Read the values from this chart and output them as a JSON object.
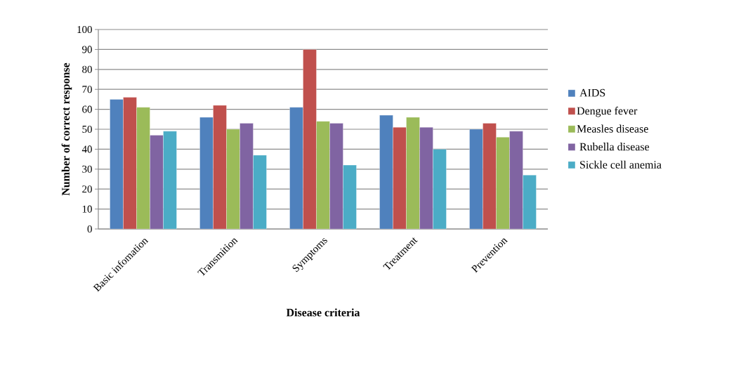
{
  "chart_data": {
    "type": "bar",
    "xlabel": "Disease criteria",
    "ylabel": "Number of correct response",
    "categories": [
      "Basic infomation",
      "Transmition",
      "Symptoms",
      "Treatment",
      "Prevention"
    ],
    "series": [
      {
        "name": " AIDS",
        "color": "#4f81bd",
        "values": [
          65,
          56,
          61,
          57,
          50
        ]
      },
      {
        "name": "Dengue fever",
        "color": "#c0504d",
        "values": [
          66,
          62,
          90,
          51,
          53
        ]
      },
      {
        "name": "Measles disease",
        "color": "#9bbb59",
        "values": [
          61,
          50,
          54,
          56,
          46
        ]
      },
      {
        "name": " Rubella disease",
        "color": "#8064a2",
        "values": [
          47,
          53,
          53,
          51,
          49
        ]
      },
      {
        "name": " Sickle cell anemia",
        "color": "#4bacc6",
        "values": [
          49,
          37,
          32,
          40,
          27
        ]
      }
    ],
    "ylim": [
      0,
      100
    ],
    "yticks": [
      0,
      10,
      20,
      30,
      40,
      50,
      60,
      70,
      80,
      90,
      100
    ],
    "grid": "y",
    "legend": "right"
  }
}
